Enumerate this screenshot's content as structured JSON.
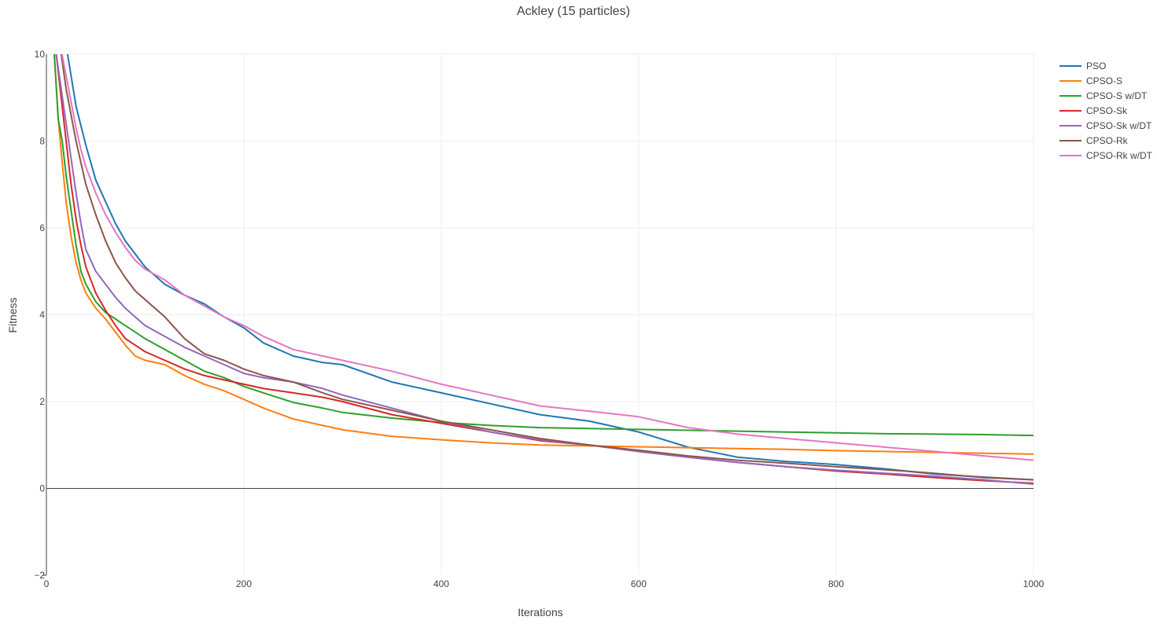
{
  "chart_data": {
    "type": "line",
    "title": "Ackley (15 particles)",
    "xlabel": "Iterations",
    "ylabel": "Fitness",
    "xlim": [
      0,
      1000
    ],
    "ylim": [
      -2,
      10
    ],
    "xticks": [
      0,
      200,
      400,
      600,
      800,
      1000
    ],
    "yticks": [
      -2,
      0,
      2,
      4,
      6,
      8,
      10
    ],
    "x_tick_labels": [
      "0",
      "200",
      "400",
      "600",
      "800",
      "1000"
    ],
    "y_tick_labels": [
      "−2",
      "0",
      "2",
      "4",
      "6",
      "8",
      "10"
    ],
    "grid": true,
    "zero_line": true,
    "legend_position": "top-right",
    "series": [
      {
        "name": "PSO",
        "color": "#1f77b4",
        "x": [
          20,
          25,
          30,
          40,
          50,
          60,
          70,
          80,
          90,
          100,
          120,
          140,
          160,
          180,
          200,
          220,
          250,
          280,
          300,
          350,
          400,
          450,
          500,
          550,
          600,
          650,
          700,
          750,
          800,
          850,
          900,
          950,
          1000
        ],
        "y": [
          10.2,
          9.5,
          8.8,
          7.9,
          7.1,
          6.6,
          6.1,
          5.7,
          5.4,
          5.1,
          4.7,
          4.45,
          4.25,
          3.95,
          3.7,
          3.35,
          3.05,
          2.9,
          2.85,
          2.45,
          2.2,
          1.95,
          1.7,
          1.55,
          1.3,
          0.95,
          0.72,
          0.62,
          0.55,
          0.45,
          0.33,
          0.26,
          0.2
        ]
      },
      {
        "name": "CPSO-S",
        "color": "#ff7f0e",
        "x": [
          8,
          12,
          16,
          20,
          25,
          30,
          35,
          40,
          50,
          60,
          70,
          80,
          90,
          100,
          120,
          140,
          160,
          180,
          200,
          220,
          250,
          280,
          300,
          350,
          400,
          450,
          500,
          550,
          600,
          650,
          700,
          750,
          800,
          850,
          900,
          950,
          1000
        ],
        "y": [
          10,
          8.5,
          7.5,
          6.6,
          5.8,
          5.2,
          4.8,
          4.5,
          4.15,
          3.9,
          3.6,
          3.3,
          3.05,
          2.95,
          2.85,
          2.6,
          2.4,
          2.25,
          2.05,
          1.85,
          1.6,
          1.45,
          1.35,
          1.2,
          1.12,
          1.05,
          1.0,
          0.98,
          0.96,
          0.94,
          0.92,
          0.9,
          0.87,
          0.85,
          0.83,
          0.81,
          0.79
        ]
      },
      {
        "name": "CPSO-S w/DT",
        "color": "#2ca02c",
        "x": [
          8,
          12,
          16,
          20,
          25,
          30,
          35,
          40,
          50,
          60,
          70,
          80,
          90,
          100,
          120,
          140,
          160,
          180,
          200,
          220,
          250,
          280,
          300,
          350,
          400,
          450,
          500,
          550,
          600,
          650,
          700,
          750,
          800,
          850,
          900,
          950,
          1000
        ],
        "y": [
          10,
          8.5,
          8.0,
          7.2,
          6.4,
          5.6,
          5.0,
          4.7,
          4.3,
          4.05,
          3.9,
          3.75,
          3.6,
          3.45,
          3.2,
          2.95,
          2.7,
          2.55,
          2.35,
          2.2,
          1.98,
          1.85,
          1.75,
          1.62,
          1.52,
          1.45,
          1.4,
          1.38,
          1.36,
          1.34,
          1.32,
          1.3,
          1.28,
          1.26,
          1.25,
          1.24,
          1.22
        ]
      },
      {
        "name": "CPSO-Sk",
        "color": "#d62728",
        "x": [
          10,
          15,
          20,
          25,
          30,
          35,
          40,
          50,
          60,
          70,
          80,
          90,
          100,
          120,
          140,
          160,
          180,
          200,
          220,
          250,
          280,
          300,
          350,
          400,
          450,
          500,
          550,
          600,
          650,
          700,
          750,
          800,
          850,
          900,
          950,
          1000
        ],
        "y": [
          10,
          9.0,
          8.0,
          7.0,
          6.2,
          5.6,
          5.1,
          4.5,
          4.1,
          3.75,
          3.45,
          3.3,
          3.15,
          2.95,
          2.75,
          2.6,
          2.5,
          2.4,
          2.3,
          2.2,
          2.1,
          2.0,
          1.7,
          1.5,
          1.3,
          1.1,
          1.0,
          0.85,
          0.72,
          0.6,
          0.5,
          0.4,
          0.33,
          0.25,
          0.18,
          0.12
        ]
      },
      {
        "name": "CPSO-Sk w/DT",
        "color": "#9467bd",
        "x": [
          10,
          15,
          20,
          25,
          30,
          35,
          40,
          50,
          60,
          70,
          80,
          90,
          100,
          120,
          140,
          160,
          180,
          200,
          220,
          250,
          280,
          300,
          350,
          400,
          450,
          500,
          550,
          600,
          650,
          700,
          750,
          800,
          850,
          900,
          950,
          1000
        ],
        "y": [
          10,
          9.2,
          8.4,
          7.6,
          6.8,
          6.1,
          5.5,
          5.0,
          4.7,
          4.4,
          4.15,
          3.95,
          3.75,
          3.5,
          3.25,
          3.05,
          2.85,
          2.65,
          2.55,
          2.45,
          2.3,
          2.15,
          1.85,
          1.55,
          1.3,
          1.12,
          1.0,
          0.85,
          0.72,
          0.6,
          0.5,
          0.42,
          0.35,
          0.28,
          0.2,
          0.1
        ]
      },
      {
        "name": "CPSO-Rk",
        "color": "#8c564b",
        "x": [
          15,
          20,
          25,
          30,
          35,
          40,
          50,
          60,
          70,
          80,
          90,
          100,
          120,
          140,
          160,
          180,
          200,
          220,
          250,
          280,
          300,
          350,
          400,
          450,
          500,
          550,
          600,
          650,
          700,
          750,
          800,
          850,
          900,
          950,
          1000
        ],
        "y": [
          10,
          9.2,
          8.6,
          8.0,
          7.5,
          7.0,
          6.3,
          5.7,
          5.2,
          4.85,
          4.55,
          4.35,
          3.95,
          3.45,
          3.1,
          2.95,
          2.75,
          2.6,
          2.45,
          2.2,
          2.05,
          1.8,
          1.55,
          1.35,
          1.15,
          1.0,
          0.88,
          0.75,
          0.65,
          0.58,
          0.5,
          0.43,
          0.35,
          0.25,
          0.2
        ]
      },
      {
        "name": "CPSO-Rk w/DT",
        "color": "#e377c2",
        "x": [
          15,
          20,
          25,
          30,
          35,
          40,
          50,
          60,
          70,
          80,
          90,
          100,
          120,
          140,
          160,
          180,
          200,
          220,
          250,
          280,
          300,
          350,
          400,
          450,
          500,
          550,
          600,
          650,
          700,
          750,
          800,
          850,
          900,
          950,
          1000
        ],
        "y": [
          10.1,
          9.5,
          8.9,
          8.3,
          7.8,
          7.4,
          6.8,
          6.3,
          5.9,
          5.55,
          5.25,
          5.05,
          4.8,
          4.45,
          4.2,
          3.95,
          3.75,
          3.5,
          3.2,
          3.05,
          2.95,
          2.7,
          2.4,
          2.15,
          1.9,
          1.78,
          1.65,
          1.4,
          1.25,
          1.15,
          1.05,
          0.95,
          0.85,
          0.75,
          0.65
        ]
      }
    ]
  }
}
